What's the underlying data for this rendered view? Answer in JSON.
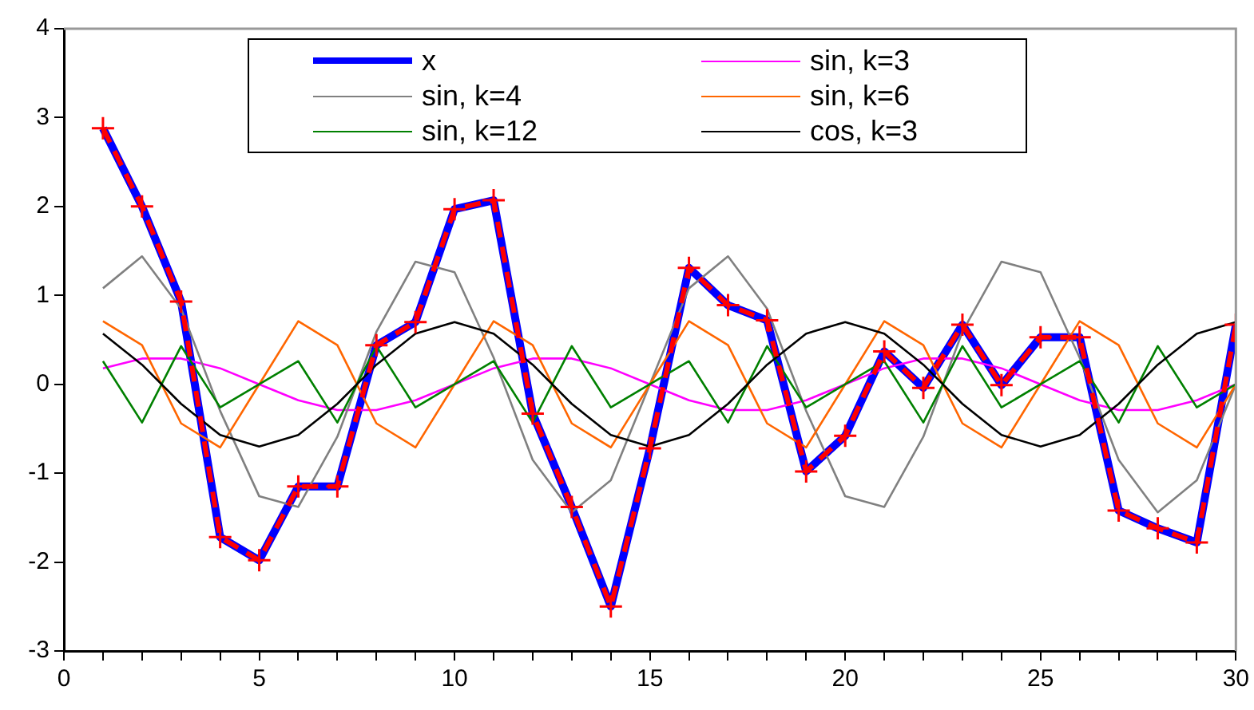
{
  "chart_data": {
    "type": "line",
    "x": [
      1,
      2,
      3,
      4,
      5,
      6,
      7,
      8,
      9,
      10,
      11,
      12,
      13,
      14,
      15,
      16,
      17,
      18,
      19,
      20,
      21,
      22,
      23,
      24,
      25,
      26,
      27,
      28,
      29,
      30
    ],
    "xlim": [
      0,
      30
    ],
    "ylim": [
      -3,
      4
    ],
    "xticks": [
      0,
      {
        "value": 1,
        "label": null
      },
      {
        "value": 2,
        "label": null
      },
      {
        "value": 3,
        "label": null
      },
      {
        "value": 4,
        "label": null
      },
      5,
      {
        "value": 6,
        "label": null
      },
      {
        "value": 7,
        "label": null
      },
      {
        "value": 8,
        "label": null
      },
      {
        "value": 9,
        "label": null
      },
      10,
      {
        "value": 11,
        "label": null
      },
      {
        "value": 12,
        "label": null
      },
      {
        "value": 13,
        "label": null
      },
      {
        "value": 14,
        "label": null
      },
      15,
      {
        "value": 16,
        "label": null
      },
      {
        "value": 17,
        "label": null
      },
      {
        "value": 18,
        "label": null
      },
      {
        "value": 19,
        "label": null
      },
      20,
      {
        "value": 21,
        "label": null
      },
      {
        "value": 22,
        "label": null
      },
      {
        "value": 23,
        "label": null
      },
      {
        "value": 24,
        "label": null
      },
      25,
      {
        "value": 26,
        "label": null
      },
      {
        "value": 27,
        "label": null
      },
      {
        "value": 28,
        "label": null
      },
      {
        "value": 29,
        "label": null
      },
      30
    ],
    "yticks": [
      -3,
      -2,
      -1,
      0,
      1,
      2,
      3,
      4
    ],
    "grid": false,
    "legend": "top",
    "marker": "none",
    "line_style": "solid",
    "series": [
      {
        "name": "x",
        "color": "#0000ff",
        "values": [
          2.88,
          2.0,
          0.93,
          -1.72,
          -1.98,
          -1.15,
          -1.15,
          0.44,
          0.7,
          1.97,
          2.07,
          -0.33,
          -1.38,
          -2.5,
          -0.72,
          1.31,
          0.89,
          0.72,
          -0.98,
          -0.58,
          0.37,
          -0.04,
          0.67,
          -0.01,
          0.53,
          0.53,
          -1.42,
          -1.62,
          -1.78,
          0.67
        ]
      },
      {
        "name": "sin, k=3",
        "color": "#ff00ff",
        "values": [
          0.18,
          0.29,
          0.29,
          0.18,
          0,
          -0.18,
          -0.29,
          -0.29,
          -0.18,
          0,
          0.18,
          0.29,
          0.29,
          0.18,
          0,
          -0.18,
          -0.29,
          -0.29,
          -0.18,
          0,
          0.18,
          0.29,
          0.29,
          0.18,
          0,
          -0.18,
          -0.29,
          -0.29,
          -0.18,
          0
        ]
      },
      {
        "name": "sin, k=4",
        "color": "#808080",
        "values": [
          1.08,
          1.44,
          0.85,
          -0.3,
          -1.26,
          -1.38,
          -0.59,
          0.59,
          1.38,
          1.26,
          0.3,
          -0.85,
          -1.44,
          -1.08,
          0,
          1.08,
          1.44,
          0.85,
          -0.3,
          -1.26,
          -1.38,
          -0.59,
          0.59,
          1.38,
          1.26,
          0.3,
          -0.85,
          -1.44,
          -1.08,
          0
        ]
      },
      {
        "name": "sin, k=6",
        "color": "#ff6600",
        "values": [
          0.71,
          0.44,
          -0.44,
          -0.71,
          0,
          0.71,
          0.44,
          -0.44,
          -0.71,
          0,
          0.71,
          0.44,
          -0.44,
          -0.71,
          0,
          0.71,
          0.44,
          -0.44,
          -0.71,
          0,
          0.71,
          0.44,
          -0.44,
          -0.71,
          0,
          0.71,
          0.44,
          -0.44,
          -0.71,
          0
        ]
      },
      {
        "name": "sin, k=12",
        "color": "#008000",
        "values": [
          0.26,
          -0.43,
          0.43,
          -0.26,
          0,
          0.26,
          -0.43,
          0.43,
          -0.26,
          0,
          0.26,
          -0.43,
          0.43,
          -0.26,
          0,
          0.26,
          -0.43,
          0.43,
          -0.26,
          0,
          0.26,
          -0.43,
          0.43,
          -0.26,
          0,
          0.26,
          -0.43,
          0.43,
          -0.26,
          0
        ]
      },
      {
        "name": "cos, k=3",
        "color": "#000000",
        "values": [
          0.57,
          0.22,
          -0.22,
          -0.57,
          -0.7,
          -0.57,
          -0.22,
          0.22,
          0.57,
          0.7,
          0.57,
          0.22,
          -0.22,
          -0.57,
          -0.7,
          -0.57,
          -0.22,
          0.22,
          0.57,
          0.7,
          0.57,
          0.22,
          -0.22,
          -0.57,
          -0.7,
          -0.57,
          -0.22,
          0.22,
          0.57,
          0.7
        ]
      },
      {
        "color": "#ff0000",
        "line_style": "dashed",
        "marker": "cross",
        "values": [
          2.88,
          2.0,
          0.93,
          -1.72,
          -1.98,
          -1.15,
          -1.15,
          0.44,
          0.7,
          1.97,
          2.07,
          -0.33,
          -1.38,
          -2.5,
          -0.72,
          1.31,
          0.89,
          0.72,
          -0.98,
          -0.58,
          0.37,
          -0.04,
          0.67,
          -0.01,
          0.53,
          0.53,
          -1.42,
          -1.62,
          -1.78,
          0.67
        ]
      }
    ]
  }
}
